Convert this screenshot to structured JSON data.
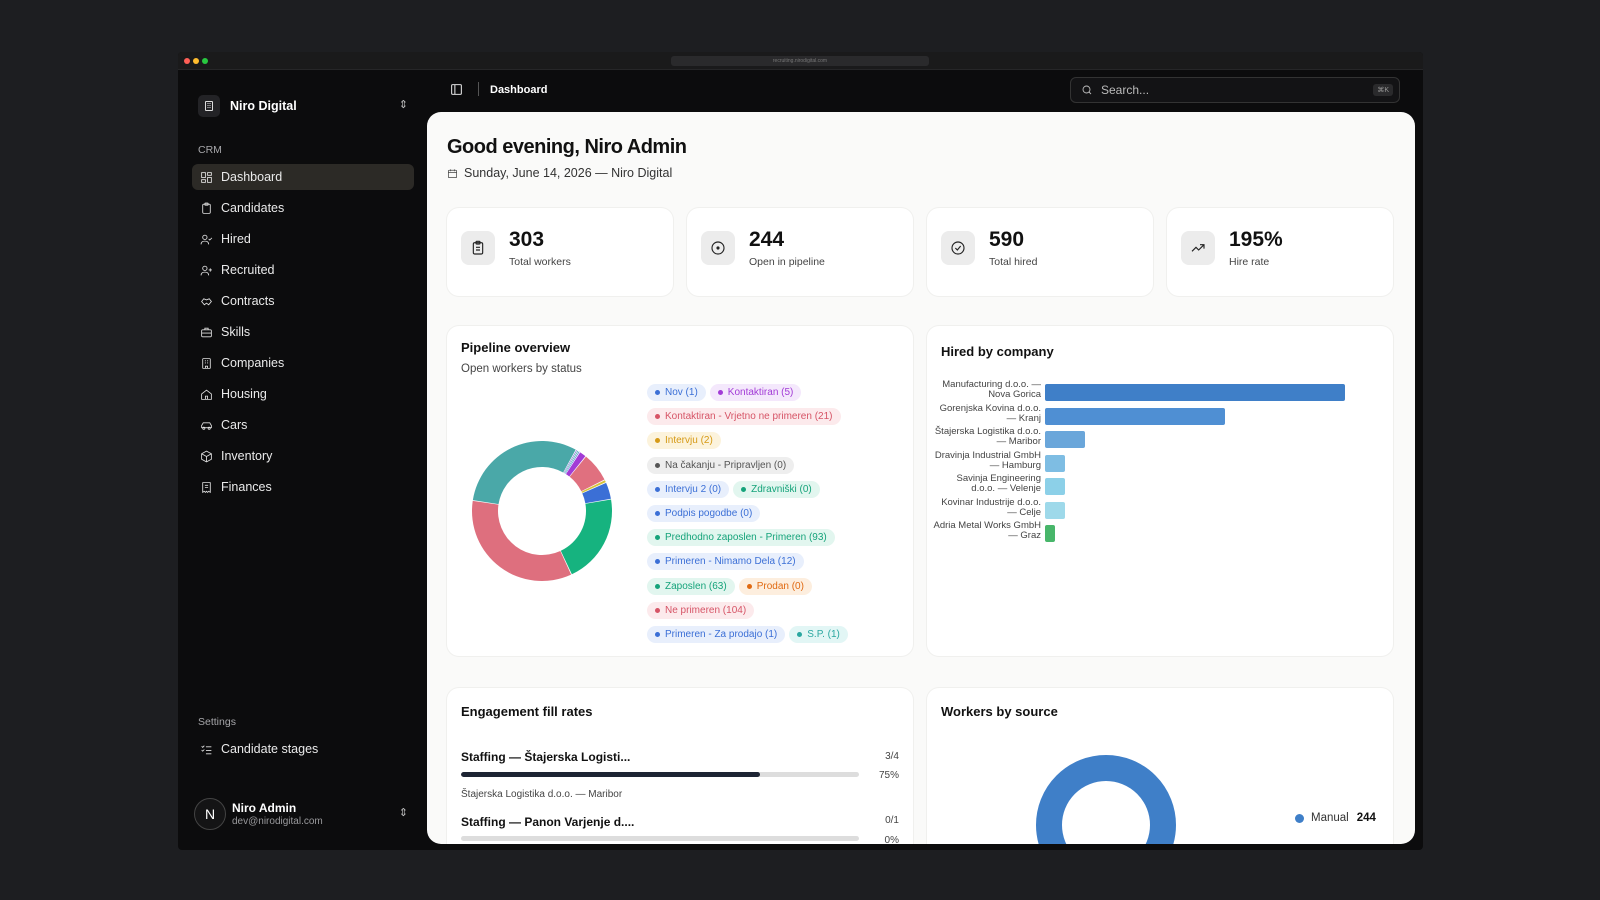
{
  "browser": {
    "url": "recruiting.nirodigital.com"
  },
  "org": {
    "name": "Niro Digital"
  },
  "sidebar": {
    "section_crm": "CRM",
    "items": [
      {
        "label": "Dashboard",
        "icon": "dashboard-icon",
        "active": true
      },
      {
        "label": "Candidates",
        "icon": "clipboard-icon"
      },
      {
        "label": "Hired",
        "icon": "user-check-icon"
      },
      {
        "label": "Recruited",
        "icon": "user-plus-icon"
      },
      {
        "label": "Contracts",
        "icon": "handshake-icon"
      },
      {
        "label": "Skills",
        "icon": "briefcase-icon"
      },
      {
        "label": "Companies",
        "icon": "building-icon"
      },
      {
        "label": "Housing",
        "icon": "home-icon"
      },
      {
        "label": "Cars",
        "icon": "car-icon"
      },
      {
        "label": "Inventory",
        "icon": "package-icon"
      },
      {
        "label": "Finances",
        "icon": "receipt-icon"
      }
    ],
    "section_settings": "Settings",
    "settings_items": [
      {
        "label": "Candidate stages",
        "icon": "list-checks-icon"
      }
    ]
  },
  "user": {
    "name": "Niro Admin",
    "email": "dev@nirodigital.com",
    "initial": "N"
  },
  "topbar": {
    "breadcrumb": "Dashboard",
    "search_placeholder": "Search...",
    "shortcut": "⌘K"
  },
  "header": {
    "greeting": "Good evening, Niro Admin",
    "date": "Sunday, June 14, 2026 — Niro Digital"
  },
  "stats": [
    {
      "value": "303",
      "label": "Total workers",
      "icon": "clipboard-list-icon"
    },
    {
      "value": "244",
      "label": "Open in pipeline",
      "icon": "circle-dot-icon"
    },
    {
      "value": "590",
      "label": "Total hired",
      "icon": "circle-check-icon"
    },
    {
      "value": "195%",
      "label": "Hire rate",
      "icon": "trending-up-icon"
    }
  ],
  "pipeline": {
    "title": "Pipeline overview",
    "subtitle": "Open workers by status",
    "legend_rows": [
      [
        {
          "label": "Nov (1)",
          "color": "#3b6fd6",
          "bg": "#e8effc"
        },
        {
          "label": "Kontaktiran (5)",
          "color": "#a23bd6",
          "bg": "#f4e8fc"
        }
      ],
      [
        {
          "label": "Kontaktiran - Vrjetno ne primeren (21)",
          "color": "#d65466",
          "bg": "#fceaec"
        }
      ],
      [
        {
          "label": "Intervju (2)",
          "color": "#d69a16",
          "bg": "#fcf3dc"
        }
      ],
      [
        {
          "label": "Na čakanju - Pripravljen (0)",
          "color": "#555555",
          "bg": "#eeeeee"
        }
      ],
      [
        {
          "label": "Intervju 2 (0)",
          "color": "#3b6fd6",
          "bg": "#e8effc"
        },
        {
          "label": "Zdravniški (0)",
          "color": "#15a37a",
          "bg": "#e2f6ef"
        }
      ],
      [
        {
          "label": "Podpis pogodbe (0)",
          "color": "#3b6fd6",
          "bg": "#e8effc"
        }
      ],
      [
        {
          "label": "Predhodno zaposlen - Primeren (93)",
          "color": "#15a37a",
          "bg": "#e2f6ef"
        }
      ],
      [
        {
          "label": "Primeren - Nimamo Dela (12)",
          "color": "#3b6fd6",
          "bg": "#e8effc"
        }
      ],
      [
        {
          "label": "Zaposlen (63)",
          "color": "#15a37a",
          "bg": "#e2f6ef"
        },
        {
          "label": "Prodan (0)",
          "color": "#e06a12",
          "bg": "#fdeede"
        }
      ],
      [
        {
          "label": "Ne primeren (104)",
          "color": "#d65466",
          "bg": "#fceaec"
        }
      ],
      [
        {
          "label": "Primeren - Za prodajo (1)",
          "color": "#3b6fd6",
          "bg": "#e8effc"
        },
        {
          "label": "S.P. (1)",
          "color": "#2aa7a0",
          "bg": "#e2f6f5"
        }
      ]
    ]
  },
  "chart_data": [
    {
      "type": "pie",
      "title": "Pipeline overview",
      "subtitle": "Open workers by status",
      "categories": [
        "Nov",
        "Kontaktiran",
        "Kontaktiran - Vrjetno ne primeren",
        "Intervju",
        "Primeren - Nimamo Dela",
        "Zaposlen",
        "Ne primeren",
        "Predhodno zaposlen - Primeren",
        "Primeren - Za prodajo",
        "S.P."
      ],
      "values": [
        1,
        5,
        21,
        2,
        12,
        63,
        104,
        93,
        1,
        1
      ],
      "colors": [
        "#3b6fd6",
        "#a23bd6",
        "#e0707f",
        "#d6c23a",
        "#3b6fd6",
        "#16b37f",
        "#de6f7e",
        "#4aa8a8",
        "#6b5ad6",
        "#2aa7a0"
      ]
    },
    {
      "type": "bar",
      "orientation": "horizontal",
      "title": "Hired by company",
      "categories": [
        "Manufacturing d.o.o. — Nova Gorica",
        "Gorenjska Kovina d.o.o. — Kranj",
        "Štajerska Logistika d.o.o. — Maribor",
        "Dravinja Industrial GmbH — Hamburg",
        "Savinja Engineering d.o.o. — Velenje",
        "Kovinar Industrije d.o.o. — Celje",
        "Adria Metal Works GmbH — Graz"
      ],
      "values": [
        300,
        180,
        40,
        20,
        20,
        20,
        10
      ],
      "colors": [
        "#3f7fc8",
        "#4f8fd3",
        "#6aa6da",
        "#7ebde3",
        "#8cd0e8",
        "#9ed9ea",
        "#48b66a"
      ]
    },
    {
      "type": "pie",
      "title": "Workers by source",
      "categories": [
        "Manual"
      ],
      "values": [
        244
      ],
      "colors": [
        "#3f7fc8"
      ]
    }
  ],
  "hired_by_company": {
    "title": "Hired by company"
  },
  "engagement": {
    "title": "Engagement fill rates",
    "items": [
      {
        "title": "Staffing — Štajerska Logisti...",
        "fraction": "3/4",
        "percent": "75%",
        "fill": 0.75,
        "subtitle": "Štajerska Logistika d.o.o. — Maribor"
      },
      {
        "title": "Staffing — Panon Varjenje d....",
        "fraction": "0/1",
        "percent": "0%",
        "fill": 0,
        "subtitle": ""
      }
    ]
  },
  "source": {
    "title": "Workers by source",
    "legend_label": "Manual",
    "legend_value": "244",
    "color": "#3f7fc8"
  }
}
